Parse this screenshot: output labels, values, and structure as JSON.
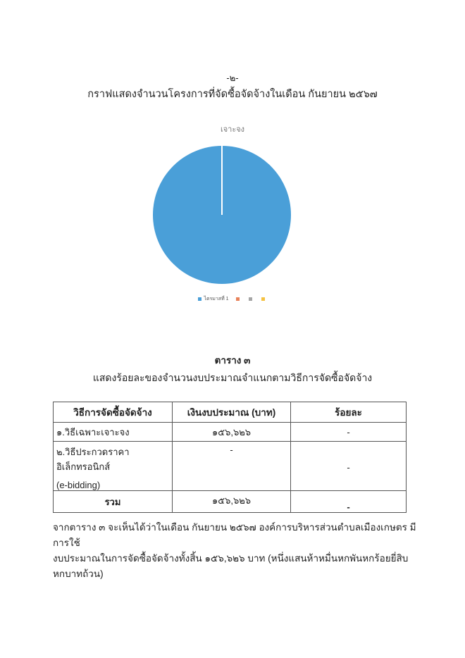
{
  "page_number": "-๒-",
  "title": "กราฟแสดงจำนวนโครงการที่จัดซื้อจัดจ้างในเดือน  กันยายน  ๒๕๖๗",
  "chart_data": {
    "type": "pie",
    "title": "เจาะจง",
    "categories": [
      "ไตรมาสที่ 1",
      "",
      "",
      ""
    ],
    "values": [
      100,
      0,
      0,
      0
    ],
    "colors": [
      "#4a9fd8",
      "#e8825a",
      "#a5a5a5",
      "#f5c242"
    ],
    "legend_position": "bottom"
  },
  "table": {
    "caption": "ตาราง ๓",
    "subtitle": "แสดงร้อยละของจำนวนงบประมาณจำแนกตามวิธีการจัดซื้อจัดจ้าง",
    "headers": [
      "วิธีการจัดซื้อจัดจ้าง",
      "เงินงบประมาณ (บาท)",
      "ร้อยละ"
    ],
    "rows": [
      {
        "method": "๑.วิธีเฉพาะเจาะจง",
        "method2": "",
        "budget": "๑๕๖,๖๒๖",
        "percent": "-"
      },
      {
        "method": "๒.วิธีประกวดราคาอิเล็กทรอนิกส์",
        "method2": "(e-bidding)",
        "budget": "-",
        "percent": "-"
      },
      {
        "method": "รวม",
        "method2": "",
        "budget": "๑๕๖,๖๒๖",
        "percent": "-"
      }
    ]
  },
  "paragraph": {
    "line1": "จากตาราง ๓ จะเห็นได้ว่าในเดือน  กันยายน  ๒๕๖๗  องค์การบริหารส่วนตำบลเมืองเกษตร มีการใช้",
    "line2": "งบประมาณในการจัดซื้อจัดจ้างทั้งสิ้น  ๑๕๖,๖๒๖ บาท (หนึ่งแสนห้าหมื่นหกพันหกร้อยยี่สิบหกบาทถ้วน)"
  }
}
